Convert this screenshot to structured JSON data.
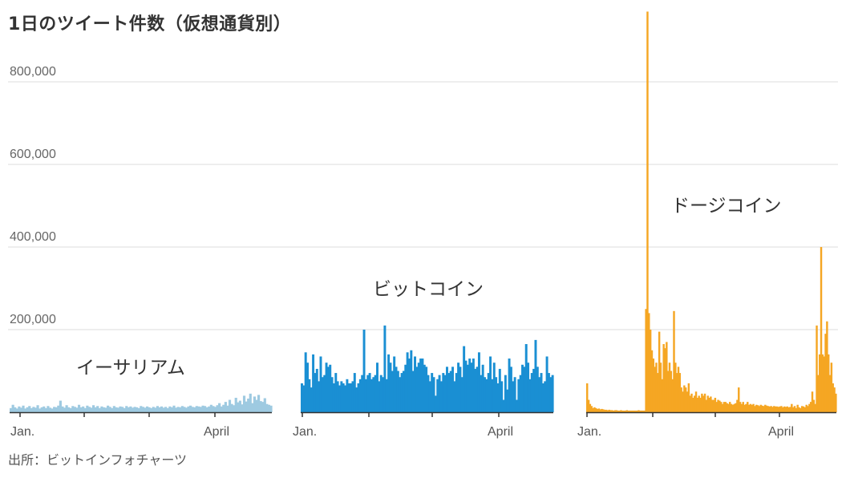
{
  "title": "1日のツイート件数（仮想通貨別）",
  "source": "出所：ビットインフォチャーツ",
  "chart_data": {
    "type": "bar",
    "title": "1日のツイート件数（仮想通貨別）",
    "y_ticks": [
      "200,000",
      "400,000",
      "600,000",
      "800,000"
    ],
    "y_tick_values": [
      200000,
      400000,
      600000,
      800000
    ],
    "ylim": [
      0,
      970000
    ],
    "grid": true,
    "x_tick_labels": [
      "Jan.",
      "April"
    ],
    "series": [
      {
        "name": "イーサリアム",
        "color": "#9ecae1",
        "values": [
          10000,
          18000,
          12000,
          9000,
          14000,
          11000,
          16000,
          9000,
          12000,
          15000,
          10000,
          13000,
          11000,
          17000,
          9000,
          12000,
          14000,
          10000,
          15000,
          11000,
          9000,
          13000,
          12000,
          16000,
          28000,
          14000,
          11000,
          17000,
          12000,
          10000,
          15000,
          13000,
          11000,
          18000,
          12000,
          14000,
          10000,
          16000,
          13000,
          11000,
          17000,
          12000,
          15000,
          10000,
          14000,
          12000,
          11000,
          16000,
          13000,
          10000,
          15000,
          12000,
          11000,
          14000,
          13000,
          10000,
          15000,
          12000,
          14000,
          11000,
          13000,
          12000,
          10000,
          15000,
          13000,
          11000,
          14000,
          12000,
          10000,
          13000,
          11000,
          15000,
          12000,
          14000,
          11000,
          13000,
          10000,
          14000,
          12000,
          16000,
          11000,
          13000,
          12000,
          15000,
          13000,
          11000,
          14000,
          16000,
          13000,
          12000,
          15000,
          14000,
          13000,
          16000,
          15000,
          12000,
          14000,
          18000,
          15000,
          13000,
          17000,
          22000,
          14000,
          18000,
          25000,
          16000,
          30000,
          20000,
          17000,
          35000,
          24000,
          28000,
          19000,
          40000,
          26000,
          33000,
          45000,
          22000,
          38000,
          30000,
          42000,
          27000,
          25000,
          34000,
          20000,
          18000,
          16000
        ]
      },
      {
        "name": "ビットコイン",
        "color": "#1a8fd3",
        "values": [
          70000,
          65000,
          145000,
          120000,
          80000,
          60000,
          140000,
          95000,
          105000,
          75000,
          135000,
          85000,
          90000,
          120000,
          110000,
          115000,
          85000,
          70000,
          95000,
          75000,
          65000,
          75000,
          70000,
          65000,
          80000,
          70000,
          70000,
          75000,
          95000,
          60000,
          70000,
          80000,
          90000,
          200000,
          80000,
          90000,
          95000,
          80000,
          85000,
          90000,
          120000,
          75000,
          90000,
          85000,
          210000,
          80000,
          140000,
          120000,
          100000,
          135000,
          110000,
          100000,
          85000,
          95000,
          100000,
          115000,
          145000,
          130000,
          150000,
          100000,
          135000,
          110000,
          120000,
          130000,
          130000,
          115000,
          110000,
          90000,
          75000,
          95000,
          85000,
          40000,
          80000,
          90000,
          75000,
          95000,
          90000,
          110000,
          95000,
          100000,
          110000,
          75000,
          95000,
          120000,
          110000,
          85000,
          160000,
          125000,
          115000,
          130000,
          120000,
          130000,
          105000,
          110000,
          145000,
          90000,
          115000,
          85000,
          80000,
          95000,
          135000,
          80000,
          120000,
          85000,
          70000,
          105000,
          75000,
          30000,
          90000,
          55000,
          130000,
          110000,
          75000,
          85000,
          30000,
          80000,
          90000,
          115000,
          110000,
          165000,
          120000,
          80000,
          95000,
          105000,
          175000,
          110000,
          85000,
          95000,
          70000,
          75000,
          135000,
          95000,
          85000,
          90000
        ]
      },
      {
        "name": "ドージコイン",
        "color": "#f5a623",
        "values": [
          70000,
          30000,
          20000,
          15000,
          10000,
          12000,
          10000,
          8000,
          9000,
          7000,
          8000,
          7000,
          6000,
          6000,
          5000,
          6000,
          5000,
          5000,
          4000,
          5000,
          5000,
          4000,
          4000,
          5000,
          4000,
          4000,
          4000,
          5000,
          4000,
          4000,
          4000,
          4000,
          4000,
          4000,
          4000,
          5000,
          4000,
          4000,
          4000,
          4000,
          250000,
          970000,
          240000,
          200000,
          150000,
          130000,
          110000,
          120000,
          95000,
          195000,
          120000,
          80000,
          165000,
          155000,
          170000,
          100000,
          120000,
          100000,
          80000,
          245000,
          120000,
          95000,
          110000,
          95000,
          60000,
          50000,
          65000,
          60000,
          50000,
          70000,
          40000,
          45000,
          35000,
          40000,
          50000,
          35000,
          40000,
          35000,
          45000,
          40000,
          45000,
          30000,
          40000,
          35000,
          38000,
          30000,
          30000,
          35000,
          25000,
          30000,
          28000,
          25000,
          20000,
          25000,
          25000,
          22000,
          20000,
          25000,
          20000,
          18000,
          20000,
          22000,
          30000,
          60000,
          25000,
          20000,
          25000,
          18000,
          20000,
          25000,
          18000,
          20000,
          18000,
          20000,
          15000,
          18000,
          17000,
          15000,
          18000,
          16000,
          15000,
          18000,
          16000,
          15000,
          14000,
          15000,
          13000,
          15000,
          14000,
          14000,
          13000,
          14000,
          15000,
          12000,
          14000,
          13000,
          14000,
          12000,
          13000,
          20000,
          12000,
          15000,
          10000,
          18000,
          12000,
          10000,
          15000,
          14000,
          12000,
          18000,
          15000,
          20000,
          25000,
          50000,
          30000,
          20000,
          210000,
          90000,
          140000,
          400000,
          140000,
          135000,
          190000,
          220000,
          140000,
          90000,
          120000,
          70000,
          60000,
          45000
        ]
      }
    ],
    "annotations": [
      "イーサリアム",
      "ビットコイン",
      "ドージコイン"
    ]
  }
}
